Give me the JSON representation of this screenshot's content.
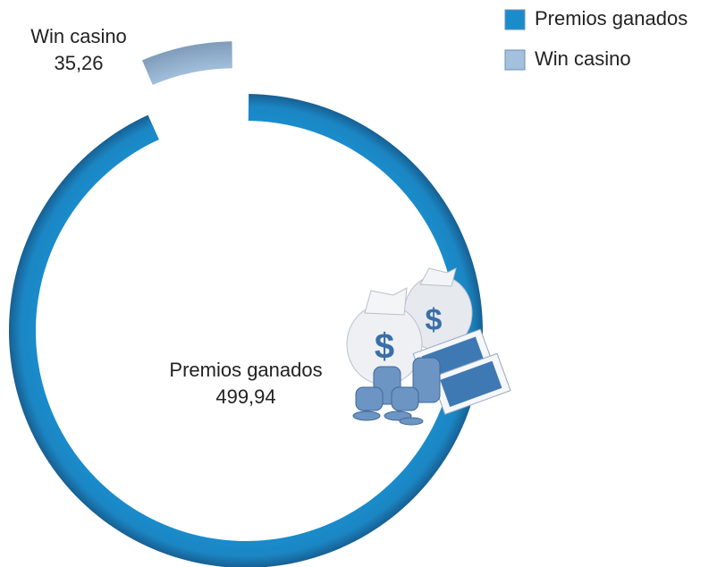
{
  "chart_data": {
    "type": "donut",
    "categories": [
      "Premios ganados",
      "Win casino"
    ],
    "values": [
      499.94,
      35.26
    ],
    "value_labels": [
      "499,94",
      "35,26"
    ],
    "colors": [
      "#1a8ccc",
      "#a3c0dc"
    ],
    "exploded": [
      false,
      true
    ],
    "legend": "top-right"
  }
}
